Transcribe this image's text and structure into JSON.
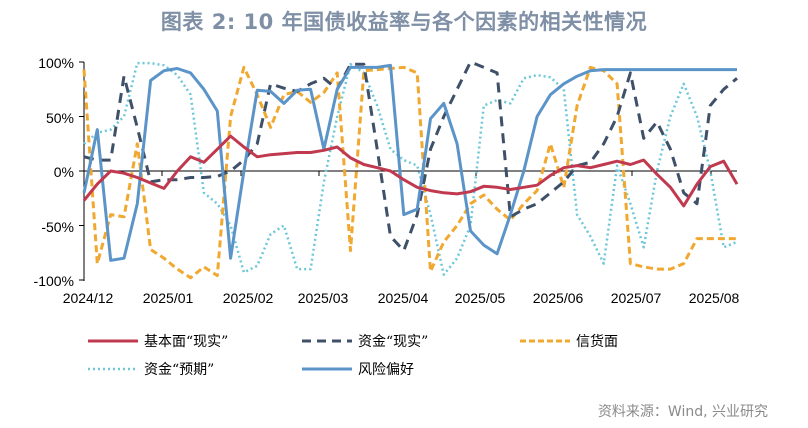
{
  "title": "图表 2:  10 年国债收益率与各个因素的相关性情况",
  "source": "资料来源：Wind, 兴业研究",
  "chart_data": {
    "type": "line",
    "title": "图表 2:  10 年国债收益率与各个因素的相关性情况",
    "xlabel": "",
    "ylabel": "",
    "ylim": [
      -100,
      100
    ],
    "yticks": [
      "100%",
      "50%",
      "0%",
      "-50%",
      "-100%"
    ],
    "xtick_labels": [
      "2024/12",
      "2025/01",
      "2025/02",
      "2025/03",
      "2025/04",
      "2025/05",
      "2025/06",
      "2025/07",
      "2025/08"
    ],
    "grid": false,
    "legend_position": "bottom",
    "n_points": 50,
    "series": [
      {
        "name": "基本面“现实”",
        "color": "#c0394f",
        "style": "solid",
        "values": [
          -27,
          -12,
          0,
          -2,
          -6,
          -11,
          -16,
          0,
          13,
          8,
          20,
          32,
          22,
          13,
          15,
          16,
          17,
          17,
          19,
          22,
          12,
          6,
          3,
          0,
          -8,
          -15,
          -18,
          -20,
          -21,
          -19,
          -14,
          -15,
          -17,
          -15,
          -13,
          -4,
          3,
          5,
          3,
          6,
          9,
          6,
          10,
          -3,
          -15,
          -32,
          -12,
          4,
          9,
          -12
        ]
      },
      {
        "name": "资金“现实”",
        "color": "#3f5069",
        "style": "dash",
        "values": [
          13,
          10,
          10,
          87,
          40,
          -10,
          -8,
          -8,
          -6,
          -6,
          -5,
          0,
          10,
          25,
          80,
          76,
          73,
          80,
          85,
          75,
          98,
          98,
          20,
          -60,
          -73,
          -40,
          20,
          50,
          75,
          100,
          95,
          90,
          -42,
          -35,
          -30,
          -20,
          -10,
          5,
          8,
          25,
          50,
          90,
          30,
          45,
          20,
          -20,
          -30,
          60,
          75,
          85
        ]
      },
      {
        "name": "信货面",
        "color": "#f0a830",
        "style": "dash",
        "values": [
          93,
          -85,
          -40,
          -42,
          25,
          -72,
          -80,
          -90,
          -98,
          -88,
          -96,
          50,
          95,
          70,
          40,
          70,
          73,
          63,
          72,
          90,
          -73,
          92,
          93,
          94,
          95,
          90,
          -92,
          -65,
          -50,
          -30,
          -22,
          -35,
          -45,
          -30,
          -18,
          25,
          -15,
          60,
          95,
          92,
          80,
          -85,
          -88,
          -90,
          -90,
          -85,
          -62,
          -62,
          -62,
          -62
        ]
      },
      {
        "name": "资金“预期”",
        "color": "#6cc7d8",
        "style": "dot",
        "values": [
          25,
          35,
          38,
          50,
          99,
          99,
          97,
          88,
          70,
          -20,
          -30,
          -50,
          -93,
          -87,
          -58,
          -50,
          -90,
          -90,
          -10,
          50,
          98,
          90,
          60,
          20,
          10,
          5,
          -40,
          -95,
          -80,
          -50,
          60,
          65,
          62,
          85,
          88,
          86,
          75,
          -40,
          -60,
          -85,
          5,
          -30,
          -70,
          0,
          50,
          80,
          50,
          0,
          -70,
          -65
        ]
      },
      {
        "name": "风险偏好",
        "color": "#5b94c8",
        "style": "solid",
        "values": [
          -20,
          38,
          -82,
          -80,
          -30,
          83,
          92,
          94,
          90,
          75,
          55,
          -80,
          0,
          74,
          73,
          62,
          74,
          75,
          20,
          75,
          95,
          95,
          95,
          97,
          -40,
          -35,
          48,
          62,
          25,
          -55,
          -68,
          -76,
          -40,
          0,
          50,
          70,
          80,
          87,
          92,
          93,
          93,
          93,
          93,
          93,
          93,
          93,
          93,
          93,
          93,
          93
        ]
      }
    ]
  },
  "axis": {
    "y_labels": [
      "100%",
      "50%",
      "0%",
      "-50%",
      "-100%"
    ],
    "x_labels": [
      "2024/12",
      "2025/01",
      "2025/02",
      "2025/03",
      "2025/04",
      "2025/05",
      "2025/06",
      "2025/07",
      "2025/08"
    ]
  },
  "legend": [
    {
      "label": "基本面“现实”"
    },
    {
      "label": "资金“现实”"
    },
    {
      "label": "信货面"
    },
    {
      "label": "资金“预期”"
    },
    {
      "label": "风险偏好"
    }
  ]
}
